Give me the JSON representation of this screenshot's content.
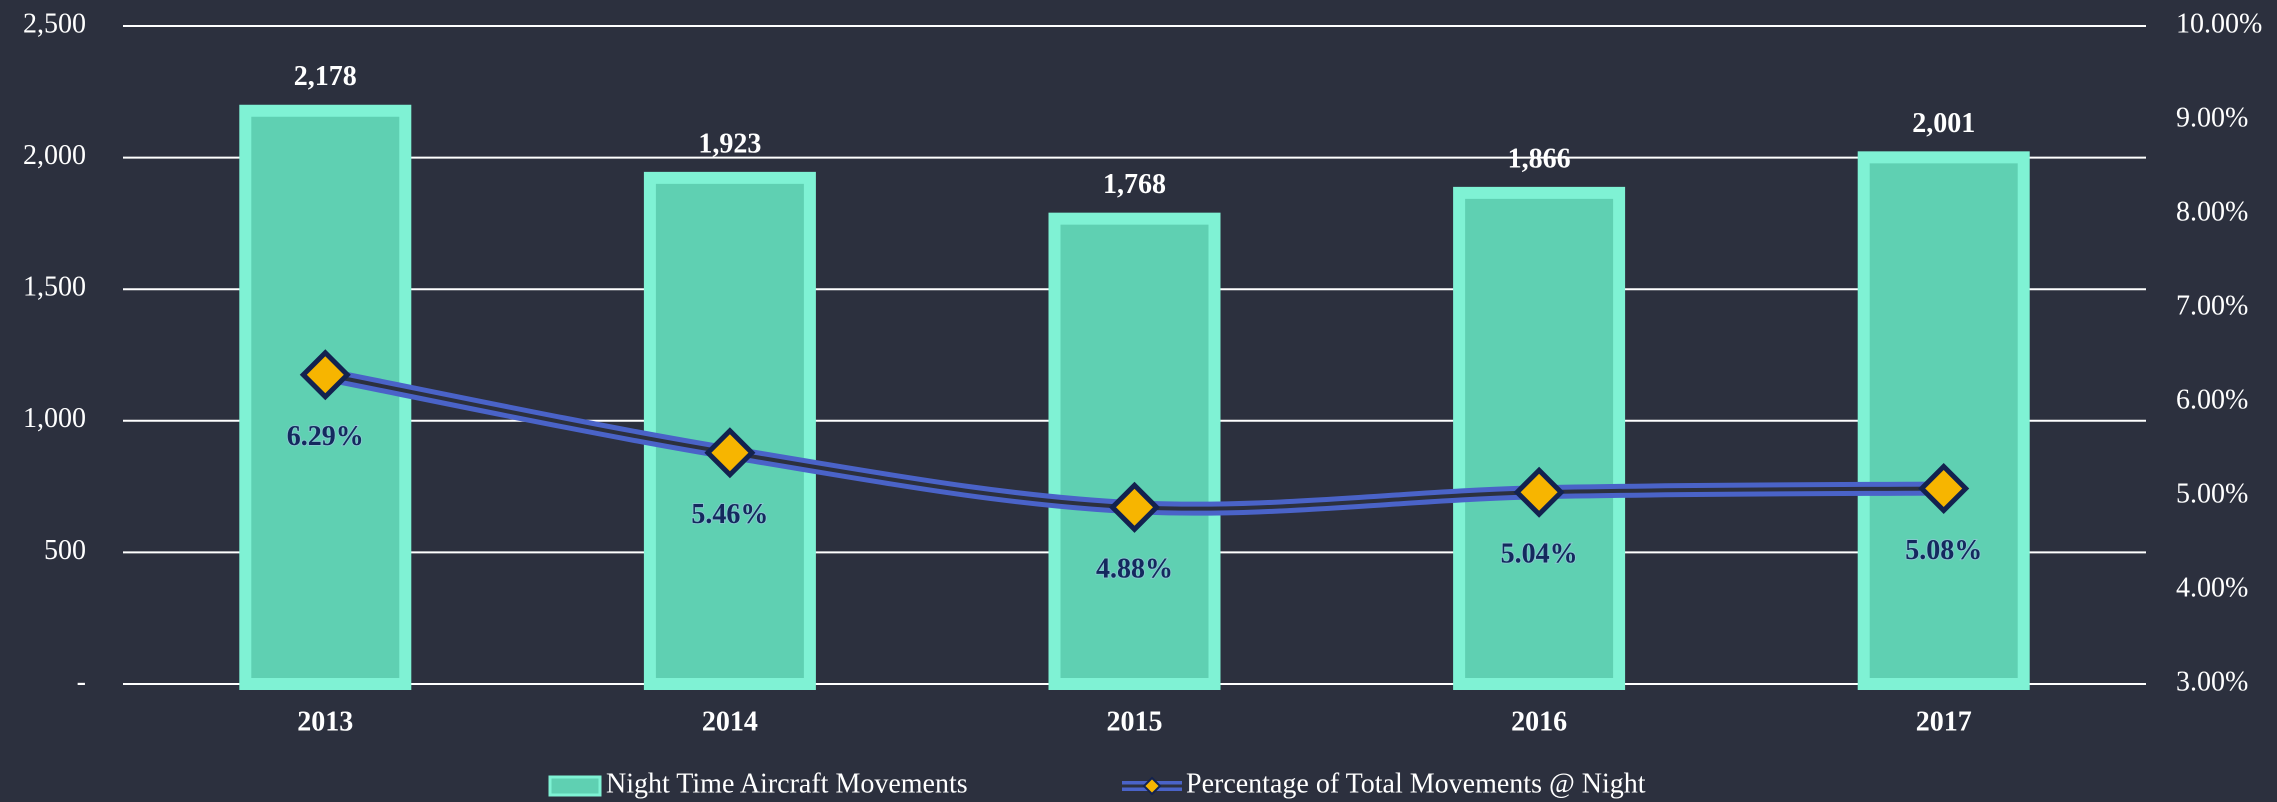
{
  "chart_data": {
    "type": "bar",
    "categories": [
      "2013",
      "2014",
      "2015",
      "2016",
      "2017"
    ],
    "series": [
      {
        "name": "Night Time Aircraft Movements",
        "color": "#5fd0b2",
        "values": [
          2178,
          1923,
          1768,
          1866,
          2001
        ],
        "value_labels": [
          "2,178",
          "1,923",
          "1,768",
          "1,866",
          "2,001"
        ]
      },
      {
        "name": "Percentage of Total Movements @ Night",
        "color": "#4a63c8",
        "axis": "y2",
        "values": [
          6.29,
          5.46,
          4.88,
          5.04,
          5.08
        ],
        "value_labels": [
          "6.29%",
          "5.46%",
          "4.88%",
          "5.04%",
          "5.08%"
        ]
      }
    ],
    "ylim": [
      0,
      2500
    ],
    "yticks": [
      {
        "value": 0,
        "label": "-"
      },
      500,
      {
        "value": 1000,
        "label": "1,000"
      },
      {
        "value": 1500,
        "label": "1,500"
      },
      {
        "value": 2000,
        "label": "2,000"
      },
      {
        "value": 2500,
        "label": "2,500"
      }
    ],
    "y2lim": [
      3,
      10
    ],
    "y2ticks": [
      {
        "value": 3,
        "label": "3.00%"
      },
      {
        "value": 4,
        "label": "4.00%"
      },
      {
        "value": 5,
        "label": "5.00%"
      },
      {
        "value": 6,
        "label": "6.00%"
      },
      {
        "value": 7,
        "label": "7.00%"
      },
      {
        "value": 8,
        "label": "8.00%"
      },
      {
        "value": 9,
        "label": "9.00%"
      },
      {
        "value": 10,
        "label": "10.00%"
      }
    ],
    "grid": true
  }
}
